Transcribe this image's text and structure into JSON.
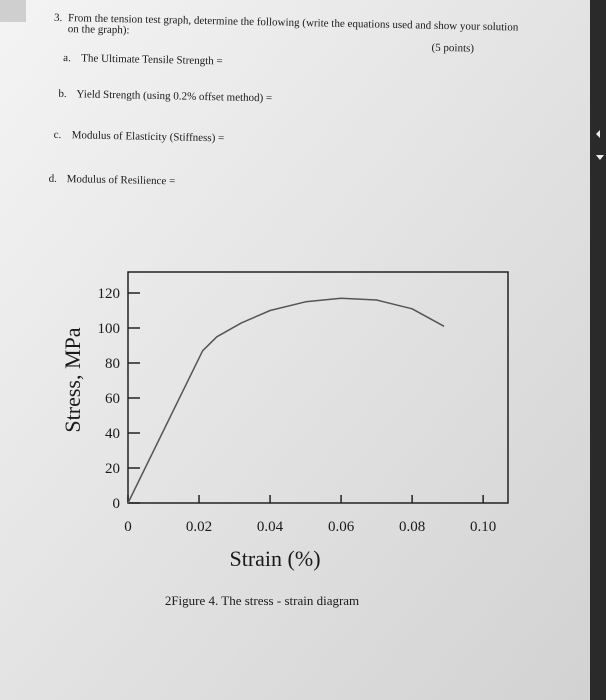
{
  "question": {
    "number": "3.",
    "text_line1": "From the tension test graph, determine the following (write the equations used and show your solution",
    "text_line2": "on the graph):",
    "points": "(5 points)",
    "items": [
      {
        "letter": "a.",
        "text": "The Ultimate Tensile Strength ="
      },
      {
        "letter": "b.",
        "text": "Yield Strength (using 0.2% offset method) ="
      },
      {
        "letter": "c.",
        "text": "Modulus of Elasticity (Stiffness) ="
      },
      {
        "letter": "d.",
        "text": "Modulus of Resilience ="
      }
    ]
  },
  "chart_data": {
    "type": "line",
    "xlabel": "Strain (%)",
    "ylabel": "Stress, MPa",
    "caption": "2Figure 4. The stress - strain diagram",
    "x": [
      0,
      0.021,
      0.025,
      0.032,
      0.04,
      0.05,
      0.06,
      0.07,
      0.08,
      0.089
    ],
    "values": [
      0,
      87,
      95,
      103,
      110,
      115,
      117,
      116,
      111,
      101
    ],
    "color": "#555555",
    "xlim": [
      0,
      0.107
    ],
    "ylim": [
      0,
      132
    ],
    "xticks": [
      0,
      0.02,
      0.04,
      0.06,
      0.08,
      {
        "value": 0.1,
        "label": "0.10"
      }
    ],
    "yticks": [
      0,
      20,
      40,
      60,
      80,
      100,
      120
    ]
  }
}
